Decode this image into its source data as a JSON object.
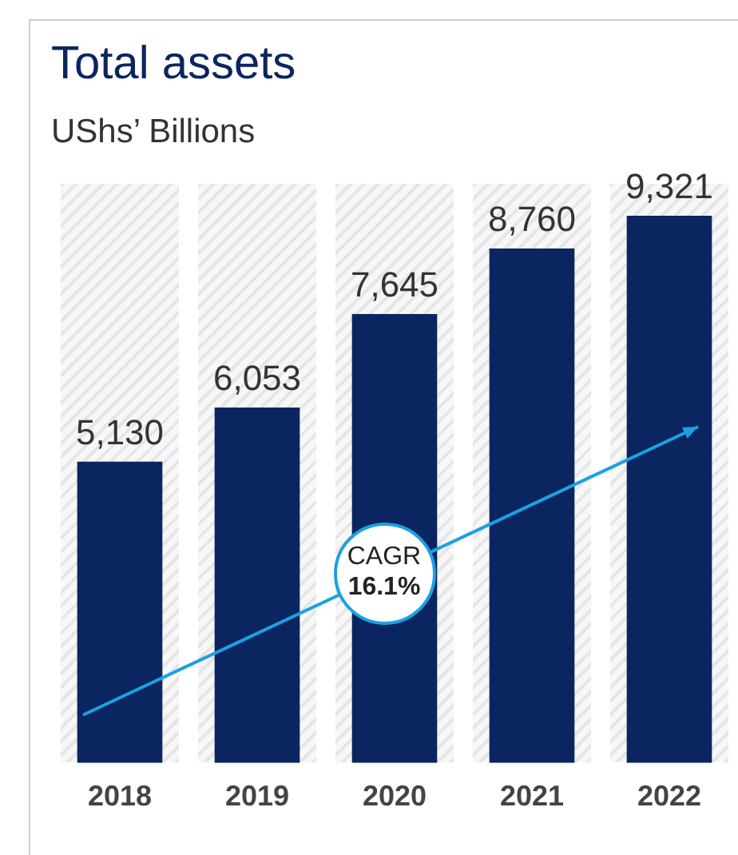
{
  "chart_data": {
    "type": "bar",
    "title": "Total assets",
    "subtitle": "UShs’ Billions",
    "categories": [
      "2018",
      "2019",
      "2020",
      "2021",
      "2022"
    ],
    "values": [
      5130,
      6053,
      7645,
      8760,
      9321
    ],
    "value_labels": [
      "5,130",
      "6,053",
      "7,645",
      "8,760",
      "9,321"
    ],
    "color": "#0b2560",
    "legend": false,
    "annotations": [
      "CAGR\n16.1%"
    ]
  }
}
